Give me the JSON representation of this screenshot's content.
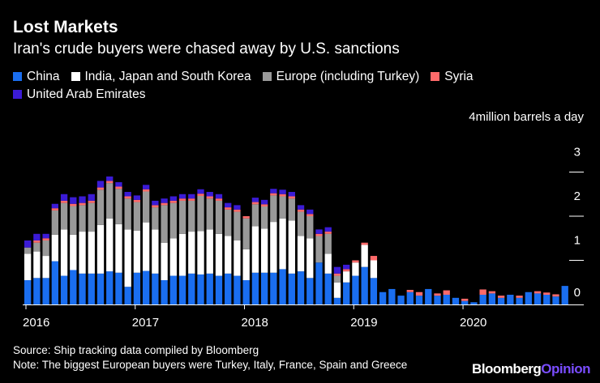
{
  "chart_data": {
    "type": "bar",
    "stacked": true,
    "title": "Lost Markets",
    "subtitle": "Iran's crude buyers were chased away by U.S. sanctions",
    "ylabel": "million barrels a day",
    "ylim": [
      0,
      4
    ],
    "y_ticks": [
      {
        "value": 4,
        "label": "4"
      },
      {
        "value": 3,
        "label": "3"
      },
      {
        "value": 2,
        "label": "2"
      },
      {
        "value": 1,
        "label": "1"
      },
      {
        "value": 0,
        "label": "0"
      }
    ],
    "x_ticks": [
      {
        "index": 0,
        "label": "2016"
      },
      {
        "index": 12,
        "label": "2017"
      },
      {
        "index": 24,
        "label": "2018"
      },
      {
        "index": 36,
        "label": "2019"
      },
      {
        "index": 48,
        "label": "2020"
      }
    ],
    "categories": [
      "2016-01",
      "2016-02",
      "2016-03",
      "2016-04",
      "2016-05",
      "2016-06",
      "2016-07",
      "2016-08",
      "2016-09",
      "2016-10",
      "2016-11",
      "2016-12",
      "2017-01",
      "2017-02",
      "2017-03",
      "2017-04",
      "2017-05",
      "2017-06",
      "2017-07",
      "2017-08",
      "2017-09",
      "2017-10",
      "2017-11",
      "2017-12",
      "2018-01",
      "2018-02",
      "2018-03",
      "2018-04",
      "2018-05",
      "2018-06",
      "2018-07",
      "2018-08",
      "2018-09",
      "2018-10",
      "2018-11",
      "2018-12",
      "2019-01",
      "2019-02",
      "2019-03",
      "2019-04",
      "2019-05",
      "2019-06",
      "2019-07",
      "2019-08",
      "2019-09",
      "2019-10",
      "2019-11",
      "2019-12",
      "2020-01",
      "2020-02",
      "2020-03",
      "2020-04",
      "2020-05",
      "2020-06",
      "2020-07",
      "2020-08",
      "2020-09",
      "2020-10",
      "2020-11",
      "2020-12"
    ],
    "series": [
      {
        "name": "China",
        "color": "#1a6ef0",
        "values": [
          0.55,
          0.6,
          0.6,
          0.98,
          0.65,
          0.78,
          0.7,
          0.7,
          0.7,
          0.75,
          0.72,
          0.4,
          0.72,
          0.76,
          0.7,
          0.55,
          0.65,
          0.65,
          0.7,
          0.68,
          0.7,
          0.65,
          0.7,
          0.65,
          0.55,
          0.72,
          0.72,
          0.72,
          0.8,
          0.7,
          0.75,
          0.6,
          0.95,
          0.7,
          0.15,
          0.5,
          0.65,
          0.85,
          0.6,
          0.28,
          0.35,
          0.2,
          0.28,
          0.2,
          0.35,
          0.2,
          0.22,
          0.15,
          0.08,
          0.05,
          0.22,
          0.25,
          0.15,
          0.22,
          0.15,
          0.28,
          0.25,
          0.22,
          0.18,
          0.42
        ]
      },
      {
        "name": "India, Japan and South Korea",
        "color": "#ffffff",
        "values": [
          0.6,
          0.6,
          0.5,
          0.6,
          1.05,
          0.8,
          0.95,
          0.95,
          1.1,
          1.2,
          1.1,
          1.3,
          0.95,
          1.1,
          1.0,
          0.85,
          0.85,
          0.95,
          0.95,
          0.98,
          1.0,
          0.95,
          0.85,
          0.8,
          0.7,
          1.05,
          1.0,
          1.15,
          1.15,
          1.2,
          0.8,
          0.9,
          0.0,
          0.45,
          0.35,
          0.25,
          0.3,
          0.5,
          0.4,
          0,
          0,
          0,
          0,
          0,
          0,
          0,
          0,
          0,
          0,
          0,
          0,
          0,
          0,
          0,
          0,
          0,
          0,
          0,
          0,
          0
        ]
      },
      {
        "name": "Europe (including Turkey)",
        "color": "#999999",
        "values": [
          0.14,
          0.2,
          0.35,
          0.55,
          0.6,
          0.65,
          0.6,
          0.65,
          0.8,
          0.8,
          0.8,
          0.7,
          0.65,
          0.7,
          0.5,
          0.85,
          0.8,
          0.75,
          0.7,
          0.8,
          0.7,
          0.75,
          0.6,
          0.65,
          0.7,
          0.5,
          0.5,
          0.6,
          0.5,
          0.5,
          0.55,
          0.5,
          0.6,
          0.45,
          0.15,
          0.0,
          0.0,
          0.0,
          0.0,
          0,
          0,
          0,
          0,
          0,
          0,
          0,
          0,
          0,
          0,
          0,
          0,
          0,
          0,
          0,
          0,
          0,
          0,
          0,
          0,
          0
        ]
      },
      {
        "name": "Syria",
        "color": "#ff6a6a",
        "values": [
          0.0,
          0.05,
          0.05,
          0.05,
          0.05,
          0.05,
          0.05,
          0.05,
          0.05,
          0.05,
          0.05,
          0.05,
          0.05,
          0.05,
          0.05,
          0.05,
          0.05,
          0.05,
          0.05,
          0.05,
          0.05,
          0.05,
          0.05,
          0.05,
          0.05,
          0.05,
          0.05,
          0.05,
          0.05,
          0.05,
          0.05,
          0.05,
          0.05,
          0.05,
          0.05,
          0.05,
          0.05,
          0.05,
          0.1,
          0.0,
          0.0,
          0.0,
          0.05,
          0.08,
          0.0,
          0.05,
          0.1,
          0.0,
          0.05,
          0.0,
          0.12,
          0.05,
          0.05,
          0.0,
          0.05,
          0.0,
          0.05,
          0.05,
          0.05,
          0.0
        ]
      },
      {
        "name": "United Arab Emirates",
        "color": "#3b1bd6",
        "values": [
          0.16,
          0.15,
          0.1,
          0.1,
          0.15,
          0.15,
          0.15,
          0.15,
          0.15,
          0.1,
          0.1,
          0.1,
          0.1,
          0.1,
          0.1,
          0.1,
          0.1,
          0.1,
          0.1,
          0.1,
          0.1,
          0.1,
          0.1,
          0.1,
          0.0,
          0.1,
          0.1,
          0.1,
          0.1,
          0.1,
          0.1,
          0.1,
          0.1,
          0.1,
          0.15,
          0.1,
          0.0,
          0.0,
          0.0,
          0.0,
          0.0,
          0.0,
          0.0,
          0.0,
          0.0,
          0.0,
          0.0,
          0.0,
          0.0,
          0.0,
          0.0,
          0.0,
          0.0,
          0.0,
          0.0,
          0.0,
          0.0,
          0.0,
          0.0,
          0.0
        ]
      }
    ],
    "legend_position": "top-left",
    "grid": false
  },
  "footer": {
    "source": "Source: Ship tracking data compiled by Bloomberg",
    "note": "Note: The biggest European buyers were Turkey, Italy, France, Spain and Greece"
  },
  "brand": {
    "main": "Bloomberg",
    "suffix": "Opinion"
  }
}
